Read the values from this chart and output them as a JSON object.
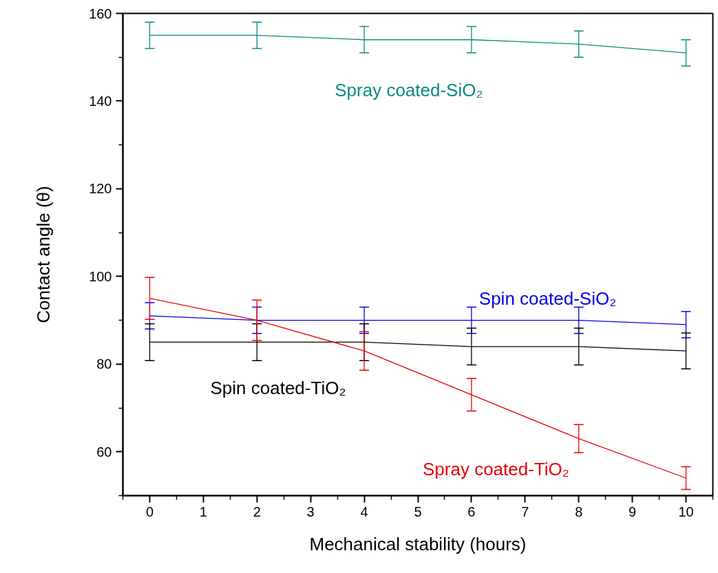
{
  "chart_data": {
    "type": "line",
    "xlabel": "Mechanical stability (hours)",
    "ylabel": "Contact angle (θ)",
    "x": [
      0,
      2,
      4,
      6,
      8,
      10
    ],
    "xlim": [
      -0.5,
      10.5
    ],
    "ylim": [
      50,
      160
    ],
    "xticks": [
      0,
      1,
      2,
      3,
      4,
      5,
      6,
      7,
      8,
      9,
      10,
      {
        "value": -0.5,
        "label": null
      },
      {
        "value": 0.5,
        "label": null
      },
      {
        "value": 1.5,
        "label": null
      },
      {
        "value": 2.5,
        "label": null
      },
      {
        "value": 3.5,
        "label": null
      },
      {
        "value": 4.5,
        "label": null
      },
      {
        "value": 5.5,
        "label": null
      },
      {
        "value": 6.5,
        "label": null
      },
      {
        "value": 7.5,
        "label": null
      },
      {
        "value": 8.5,
        "label": null
      },
      {
        "value": 9.5,
        "label": null
      },
      {
        "value": 10.5,
        "label": null
      }
    ],
    "yticks": [
      60,
      80,
      100,
      120,
      140,
      160,
      {
        "value": 50,
        "label": null
      },
      {
        "value": 70,
        "label": null
      },
      {
        "value": 90,
        "label": null
      },
      {
        "value": 110,
        "label": null
      },
      {
        "value": 130,
        "label": null
      },
      {
        "value": 150,
        "label": null
      }
    ],
    "grid": false,
    "line_style": "solid",
    "series": [
      {
        "name": "Spray coated-SiO₂",
        "color": "#0a8a80",
        "values": [
          155,
          155,
          154,
          154,
          153,
          151
        ],
        "errors": [
          3,
          3,
          3,
          3,
          3,
          3
        ]
      },
      {
        "name": "Spin coated-SiO₂",
        "color": "#0000e6",
        "values": [
          91,
          90,
          90,
          90,
          90,
          89
        ],
        "errors": [
          3,
          3,
          3,
          3,
          3,
          3
        ]
      },
      {
        "name": "Spin coated-TiO₂",
        "color": "#000000",
        "values": [
          85,
          85,
          85,
          84,
          84,
          83
        ],
        "errors": [
          4.2,
          4.2,
          4.2,
          4.2,
          4.2,
          4.1
        ]
      },
      {
        "name": "Spray coated-TiO₂",
        "color": "#e60000",
        "values": [
          95,
          90,
          83,
          73,
          63,
          54
        ],
        "errors": [
          4.8,
          4.6,
          4.4,
          3.7,
          3.2,
          2.6
        ]
      }
    ]
  }
}
